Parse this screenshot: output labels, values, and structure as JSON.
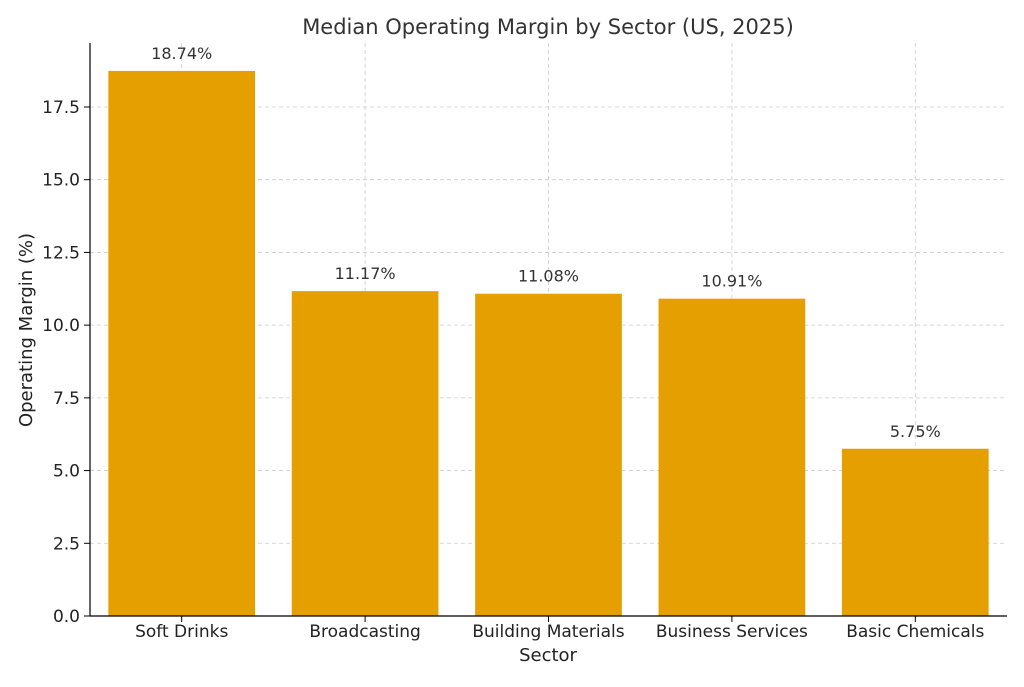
{
  "chart_data": {
    "type": "bar",
    "title": "Median Operating Margin by Sector (US, 2025)",
    "xlabel": "Sector",
    "ylabel": "Operating Margin (%)",
    "categories": [
      "Soft Drinks",
      "Broadcasting",
      "Building Materials",
      "Business Services",
      "Basic Chemicals"
    ],
    "values": [
      18.74,
      11.17,
      11.08,
      10.91,
      5.75
    ],
    "data_labels": [
      "18.74%",
      "11.17%",
      "11.08%",
      "10.91%",
      "5.75%"
    ],
    "ylim": [
      0,
      19.7
    ],
    "yticks": [
      0.0,
      2.5,
      5.0,
      7.5,
      10.0,
      12.5,
      15.0,
      17.5
    ],
    "ytick_labels": [
      "0.0",
      "2.5",
      "5.0",
      "7.5",
      "10.0",
      "12.5",
      "15.0",
      "17.5"
    ],
    "grid": true,
    "legend": "none",
    "colors": {
      "bar": "#E5A000",
      "grid": "#cccccc",
      "axis": "#000000",
      "text": "#333333"
    }
  }
}
